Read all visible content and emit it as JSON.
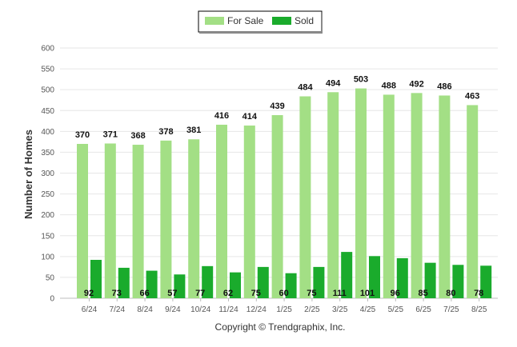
{
  "chart_data": {
    "type": "bar",
    "categories": [
      "6/24",
      "7/24",
      "8/24",
      "9/24",
      "10/24",
      "11/24",
      "12/24",
      "1/25",
      "2/25",
      "3/25",
      "4/25",
      "5/25",
      "6/25",
      "7/25",
      "8/25"
    ],
    "series": [
      {
        "name": "For Sale",
        "color": "#a3df85",
        "values": [
          370,
          371,
          368,
          378,
          381,
          416,
          414,
          439,
          484,
          494,
          503,
          488,
          492,
          486,
          463
        ]
      },
      {
        "name": "Sold",
        "color": "#1aab2c",
        "values": [
          92,
          73,
          66,
          57,
          77,
          62,
          75,
          60,
          75,
          111,
          101,
          96,
          85,
          80,
          78
        ]
      }
    ],
    "ylabel": "Number of Homes",
    "xlabel": "",
    "ylim": [
      0,
      600
    ],
    "yticks": [
      0,
      50,
      100,
      150,
      200,
      250,
      300,
      350,
      400,
      450,
      500,
      550,
      600
    ],
    "grid": true,
    "legend": "top-center",
    "credit": "Copyright © Trendgraphix, Inc."
  }
}
